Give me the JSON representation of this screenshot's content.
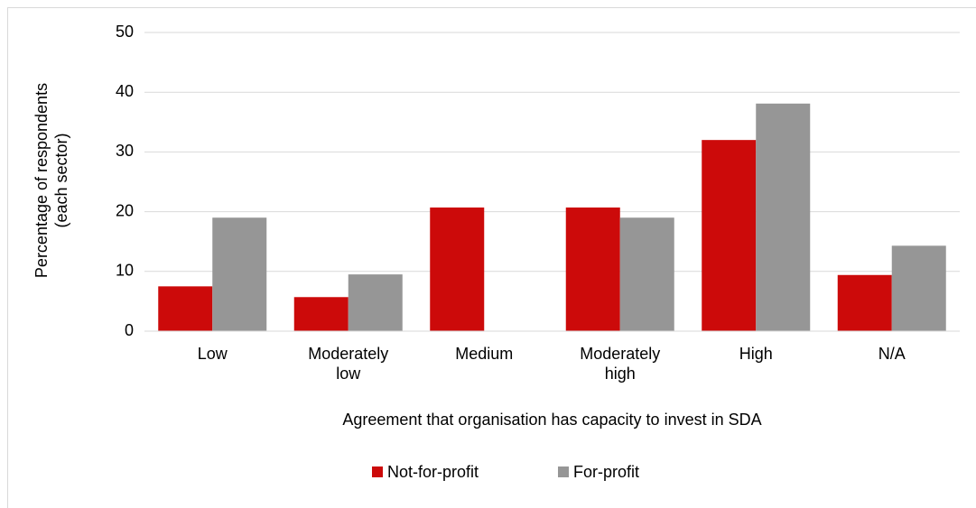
{
  "chart_data": {
    "type": "bar",
    "xlabel": "Agreement that organisation has capacity to invest in SDA",
    "ylabel": "Percentage of respondents (each sector)",
    "categories": [
      "Low",
      "Moderately low",
      "Medium",
      "Moderately high",
      "High",
      "N/A"
    ],
    "series": [
      {
        "name": "Not-for-profit",
        "color": "#cc0a0a",
        "values": [
          7.5,
          5.7,
          20.7,
          20.7,
          32.0,
          9.4
        ]
      },
      {
        "name": "For-profit",
        "color": "#969696",
        "values": [
          19.0,
          9.5,
          0,
          19.0,
          38.1,
          14.3
        ]
      }
    ],
    "ylim": [
      0,
      50
    ],
    "yticks": [
      0,
      10,
      20,
      30,
      40,
      50
    ],
    "grid": true,
    "legend": "bottom"
  }
}
